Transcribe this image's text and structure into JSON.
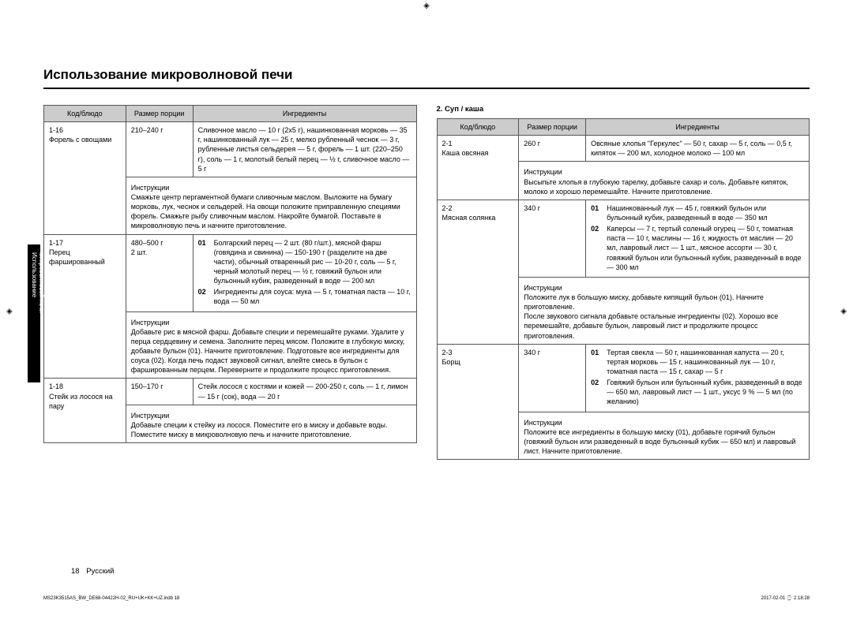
{
  "page": {
    "title": "Использование микроволновой печи",
    "side_tab": "Использование микроволновой печи",
    "page_number": "18",
    "lang_label": "Русский",
    "footer_file": "MS23K3515AS_BW_DE68-04422H-02_RU+UK+KK+UZ.indb   18",
    "footer_date": "2017-02-01   ⌚ 2:18:28"
  },
  "headers": {
    "code": "Код/блюдо",
    "portion": "Размер порции",
    "ingredients": "Ингредиенты",
    "instructions": "Инструкции"
  },
  "section2_title": "2. Суп / каша",
  "left": [
    {
      "code": "1-16",
      "name": "Форель с овощами",
      "portion": "210–240 г",
      "ingredients": "Сливочное масло — 10 г (2x5 г), нашинкованная морковь — 35 г, нашинкованный лук — 25 г, мелко рубленный чеснок — 3 г, рубленные листья сельдерея — 5 г, форель — 1 шт. (220–250 г), соль — 1 г, молотый белый перец — ½ г, сливочное масло — 5 г",
      "instructions": "Смажьте центр пергаментной бумаги сливочным маслом. Выложите на бумагу морковь, лук, чеснок и сельдерей. На овощи положите приправленную специями форель. Смажьте рыбу сливочным маслом. Накройте бумагой. Поставьте в микроволновую печь и начните приготовление."
    },
    {
      "code": "1-17",
      "name": "Перец фаршированный",
      "portion_line1": "480–500 г",
      "portion_line2": "2 шт.",
      "ing1": "Болгарский перец — 2 шт. (80 г/шт.), мясной фарш (говядина и свинина) — 150-190 г (разделите на две части), обычный отваренный рис — 10-20 г, соль — 5 г, черный молотый перец — ½ г, говяжий бульон или бульонный кубик, разведенный в воде — 200 мл",
      "ing2": "Ингредиенты для соуса: мука — 5 г, томатная паста — 10 г, вода — 50 мл",
      "instructions": "Добавьте рис в мясной фарш. Добавьте специи и перемешайте руками. Удалите у перца сердцевину и семена. Заполните перец мясом. Положите в глубокую миску, добавьте бульон (01). Начните приготовление. Подготовьте все ингредиенты для соуса (02). Когда печь подаст звуковой сигнал, влейте смесь в бульон с фаршированным перцем. Переверните и продолжите процесс приготовления."
    },
    {
      "code": "1-18",
      "name": "Стейк из лосося на пару",
      "portion": "150–170 г",
      "ingredients": "Стейк лосося с костями и кожей — 200-250 г, соль — 1 г, лимон — 15 г (сок), вода — 20 г",
      "instructions": "Добавьте специи к стейку из лосося. Поместите его в миску и добавьте воды. Поместите миску в микроволновую печь и начните приготовление."
    }
  ],
  "right": [
    {
      "code": "2-1",
      "name": "Каша овсяная",
      "portion": "260 г",
      "ingredients": "Овсяные хлопья \"Геркулес\" — 50 г, сахар — 5 г, соль — 0,5 г, кипяток — 200 мл, холодное молоко — 100 мл",
      "instructions": "Высыпьте хлопья в глубокую тарелку, добавьте сахар и соль. Добавьте кипяток, молоко и хорошо перемешайте. Начните приготовление."
    },
    {
      "code": "2-2",
      "name": "Мясная солянка",
      "portion": "340 г",
      "ing1": "Нашинкованный лук — 45 г, говяжий бульон или бульонный кубик, разведенный в воде — 350 мл",
      "ing2": "Каперсы — 7 г, тертый соленый огурец — 50 г, томатная паста — 10 г, маслины — 16 г, жидкость от маслин — 20 мл, лавровый лист — 1 шт., мясное ассорти — 30 г, говяжий бульон или бульонный кубик, разведенный в воде — 300 мл",
      "instr1": "Положите лук в большую миску, добавьте кипящий бульон (01). Начните приготовление.",
      "instr2": "После звукового сигнала добавьте остальные ингредиенты (02). Хорошо все перемешайте, добавьте бульон, лавровый лист и продолжите процесс приготовления."
    },
    {
      "code": "2-3",
      "name": "Борщ",
      "portion": "340 г",
      "ing1": "Тертая свекла — 50 г, нашинкованная капуста — 20 г, тертая морковь — 15 г, нашинкованный лук — 10 г, томатная паста — 15 г, сахар — 5 г",
      "ing2": "Говяжий бульон или бульонный кубик, разведенный в воде — 650 мл, лавровый лист — 1 шт., уксус 9 % — 5 мл (по желанию)",
      "instructions": "Положите все ингредиенты в большую миску (01), добавьте горячий бульон (говяжий бульон или разведенный в воде бульонный кубик — 650 мл) и лавровый лист. Начните приготовление."
    }
  ]
}
